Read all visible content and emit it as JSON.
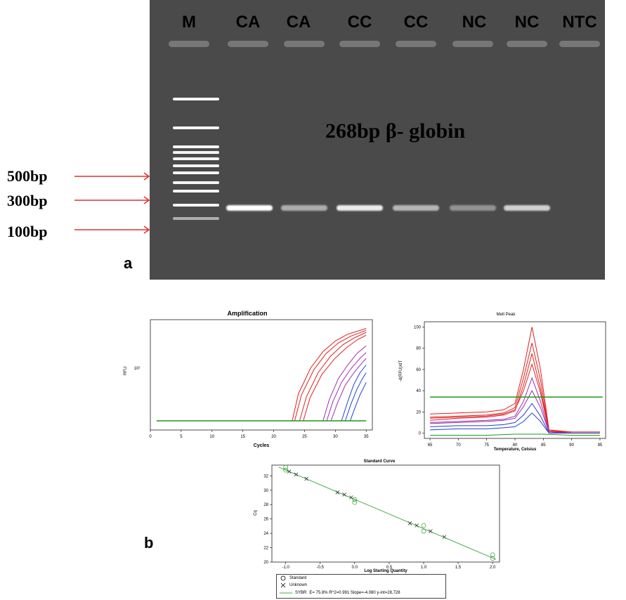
{
  "panel_a": {
    "letter": "a",
    "lanes": [
      "M",
      "CA",
      "CA",
      "CC",
      "CC",
      "NC",
      "NC",
      "NTC"
    ],
    "annotation": "268bp β- globin",
    "markers": [
      "500bp",
      "300bp",
      "100bp"
    ],
    "colors": {
      "gel": "#4a4a4a",
      "band": "#ffffff",
      "arrow": "#e03030"
    }
  },
  "panel_b": {
    "letter": "b"
  },
  "chart_data": [
    {
      "type": "line",
      "title": "Amplification",
      "xlabel": "Cycles",
      "ylabel": "RFU",
      "y_tick_label": "10²",
      "xlim": [
        0,
        36
      ],
      "x_ticks": [
        "0",
        "5",
        "10",
        "15",
        "20",
        "25",
        "30",
        "35"
      ],
      "threshold_color": "#1a9a1a",
      "series": [
        {
          "color": "#e02020",
          "curves": [
            {
              "x": [
                23.0,
                24,
                26,
                28,
                30,
                32,
                35
              ],
              "y": [
                0.0,
                0.28,
                0.55,
                0.72,
                0.83,
                0.9,
                0.96
              ]
            },
            {
              "x": [
                23.4,
                24.5,
                26.5,
                28.5,
                30.5,
                32.5,
                35
              ],
              "y": [
                0.0,
                0.27,
                0.53,
                0.7,
                0.81,
                0.88,
                0.94
              ]
            },
            {
              "x": [
                24.2,
                25.3,
                27.2,
                29.2,
                31.2,
                33,
                35
              ],
              "y": [
                0.0,
                0.25,
                0.5,
                0.67,
                0.79,
                0.86,
                0.92
              ]
            },
            {
              "x": [
                24.8,
                25.9,
                27.8,
                29.8,
                31.8,
                33.5,
                35
              ],
              "y": [
                0.0,
                0.24,
                0.48,
                0.64,
                0.76,
                0.84,
                0.89
              ]
            }
          ]
        },
        {
          "color": "#9a30b0",
          "curves": [
            {
              "x": [
                28.0,
                29,
                30.5,
                32,
                33.5,
                35
              ],
              "y": [
                0.0,
                0.22,
                0.44,
                0.58,
                0.7,
                0.78
              ]
            },
            {
              "x": [
                28.6,
                29.6,
                31,
                32.5,
                34,
                35
              ],
              "y": [
                0.0,
                0.2,
                0.4,
                0.54,
                0.65,
                0.71
              ]
            },
            {
              "x": [
                29.3,
                30.3,
                31.6,
                33,
                34.3,
                35
              ],
              "y": [
                0.0,
                0.18,
                0.37,
                0.5,
                0.6,
                0.65
              ]
            }
          ]
        },
        {
          "color": "#2040d0",
          "curves": [
            {
              "x": [
                31.0,
                32,
                33,
                34,
                35
              ],
              "y": [
                0.0,
                0.2,
                0.38,
                0.5,
                0.58
              ]
            },
            {
              "x": [
                31.6,
                32.5,
                33.5,
                34.4,
                35
              ],
              "y": [
                0.0,
                0.17,
                0.33,
                0.44,
                0.5
              ]
            },
            {
              "x": [
                32.4,
                33.2,
                34,
                34.7,
                35
              ],
              "y": [
                0.0,
                0.14,
                0.27,
                0.36,
                0.4
              ]
            }
          ]
        }
      ]
    },
    {
      "type": "line",
      "title": "Melt Peak",
      "xlabel": "Temperature, Celsius",
      "ylabel": "-d(RFU)/dT",
      "xlim": [
        64,
        96
      ],
      "ylim": [
        -5,
        105
      ],
      "x_ticks": [
        65,
        70,
        75,
        80,
        85,
        90,
        95
      ],
      "y_ticks": [
        0,
        20,
        40,
        60,
        80,
        100
      ],
      "threshold": 34,
      "threshold_color": "#1a9a1a",
      "series": [
        {
          "color": "#e02020",
          "curves": [
            {
              "x": [
                65,
                70,
                75,
                78,
                80,
                81.5,
                83,
                84.5,
                86,
                90,
                95
              ],
              "y": [
                18,
                19,
                20,
                22,
                28,
                60,
                100,
                60,
                3,
                1,
                1
              ]
            },
            {
              "x": [
                65,
                70,
                75,
                78,
                80,
                81.5,
                83,
                84.5,
                86,
                90,
                95
              ],
              "y": [
                15,
                16,
                17,
                19,
                24,
                52,
                85,
                50,
                2,
                1,
                1
              ]
            },
            {
              "x": [
                65,
                70,
                75,
                78,
                80,
                81.5,
                83,
                84.5,
                86,
                90,
                95
              ],
              "y": [
                12,
                14,
                15,
                17,
                21,
                45,
                75,
                42,
                2,
                0,
                0
              ]
            },
            {
              "x": [
                65,
                70,
                75,
                78,
                80,
                81.5,
                83,
                84.5,
                86,
                90,
                95
              ],
              "y": [
                14,
                15,
                16,
                18,
                22,
                40,
                65,
                38,
                2,
                0,
                0
              ]
            }
          ]
        },
        {
          "color": "#9a30b0",
          "curves": [
            {
              "x": [
                65,
                70,
                75,
                78,
                80,
                81.5,
                83,
                84.5,
                86,
                90,
                95
              ],
              "y": [
                10,
                11,
                12,
                13,
                16,
                30,
                52,
                30,
                1,
                0,
                0
              ]
            },
            {
              "x": [
                65,
                70,
                75,
                78,
                80,
                81.5,
                83,
                84.5,
                86,
                90,
                95
              ],
              "y": [
                9,
                10,
                11,
                12,
                14,
                25,
                40,
                24,
                1,
                0,
                0
              ]
            }
          ]
        },
        {
          "color": "#2040d0",
          "curves": [
            {
              "x": [
                65,
                70,
                75,
                78,
                80,
                81.5,
                83,
                84.5,
                86,
                90,
                95
              ],
              "y": [
                6,
                7,
                7,
                8,
                10,
                17,
                28,
                16,
                0,
                0,
                0
              ]
            },
            {
              "x": [
                65,
                70,
                75,
                78,
                80,
                81.5,
                83,
                84.5,
                86,
                90,
                95
              ],
              "y": [
                3,
                4,
                4,
                5,
                6,
                11,
                19,
                11,
                0,
                0,
                0
              ]
            }
          ]
        },
        {
          "color": "#1a9a1a",
          "curves": [
            {
              "x": [
                65,
                70,
                75,
                80,
                85,
                90,
                95
              ],
              "y": [
                -2,
                -2,
                -2,
                -1,
                -1,
                -2,
                -2
              ]
            }
          ]
        }
      ]
    },
    {
      "type": "scatter",
      "title": "Standard Curve",
      "xlabel": "Log Starting Quantity",
      "ylabel": "Cq",
      "xlim": [
        -1.2,
        2.1
      ],
      "ylim": [
        20,
        33.5
      ],
      "x_ticks": [
        "-1.0",
        "-0.5",
        "0.0",
        "0.5",
        "1.0",
        "1.5",
        "2.0"
      ],
      "y_ticks": [
        20,
        22,
        24,
        26,
        28,
        30,
        32
      ],
      "fit": {
        "slope": -4.08,
        "intercept": 28.728,
        "color": "#4aa84a"
      },
      "series": [
        {
          "name": "Standard",
          "marker": "circle",
          "points": [
            [
              -1.0,
              33.2
            ],
            [
              -1.0,
              32.8
            ],
            [
              0.0,
              28.7
            ],
            [
              0.0,
              28.3
            ],
            [
              1.0,
              25.1
            ],
            [
              1.0,
              24.3
            ],
            [
              2.0,
              21.0
            ],
            [
              2.0,
              20.5
            ]
          ]
        },
        {
          "name": "Unknown",
          "marker": "x",
          "points": [
            [
              -0.95,
              32.6
            ],
            [
              -0.85,
              32.2
            ],
            [
              -0.7,
              31.6
            ],
            [
              -0.25,
              29.7
            ],
            [
              -0.15,
              29.4
            ],
            [
              -0.05,
              29.0
            ],
            [
              0.8,
              25.4
            ],
            [
              0.9,
              25.1
            ],
            [
              1.1,
              24.3
            ],
            [
              1.3,
              23.5
            ]
          ]
        }
      ],
      "legend": {
        "entries": [
          "Standard",
          "Unknown"
        ],
        "fit_name": "SYBR",
        "fit_stats": "E= 75.8% R^2=0.991 Slope=-4.080 y-int=28.728"
      }
    }
  ]
}
